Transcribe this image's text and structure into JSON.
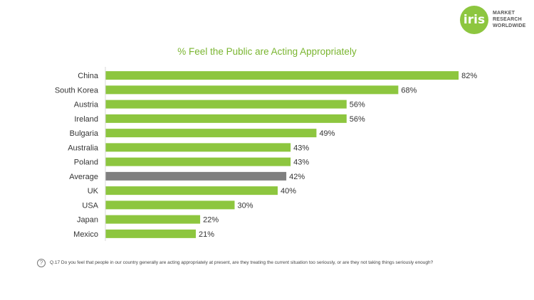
{
  "logo": {
    "mark": "iris",
    "line1": "MARKET",
    "line2": "RESEARCH",
    "line3": "WORLDWIDE"
  },
  "footnote": {
    "icon": "question-circle-icon",
    "text": "Q.17 Do you feel that people in our country generally are acting appropriately at present, are they  treating the current situation too seriously, or are they not taking things seriously enough?"
  },
  "colors": {
    "bar": "#8dc63f",
    "highlight": "#7f7f7f",
    "title": "#7ab530"
  },
  "chart_data": {
    "type": "bar",
    "orientation": "horizontal",
    "title": "% Feel the Public are Acting Appropriately",
    "categories": [
      "China",
      "South Korea",
      "Austria",
      "Ireland",
      "Bulgaria",
      "Australia",
      "Poland",
      "Average",
      "UK",
      "USA",
      "Japan",
      "Mexico"
    ],
    "values": [
      82,
      68,
      56,
      56,
      49,
      43,
      43,
      42,
      40,
      30,
      22,
      21
    ],
    "value_labels": [
      "82%",
      "68%",
      "56%",
      "56%",
      "49%",
      "43%",
      "43%",
      "42%",
      "40%",
      "30%",
      "22%",
      "21%"
    ],
    "highlight_category": "Average",
    "xlim": [
      0,
      100
    ],
    "grid": false,
    "legend": "none"
  }
}
